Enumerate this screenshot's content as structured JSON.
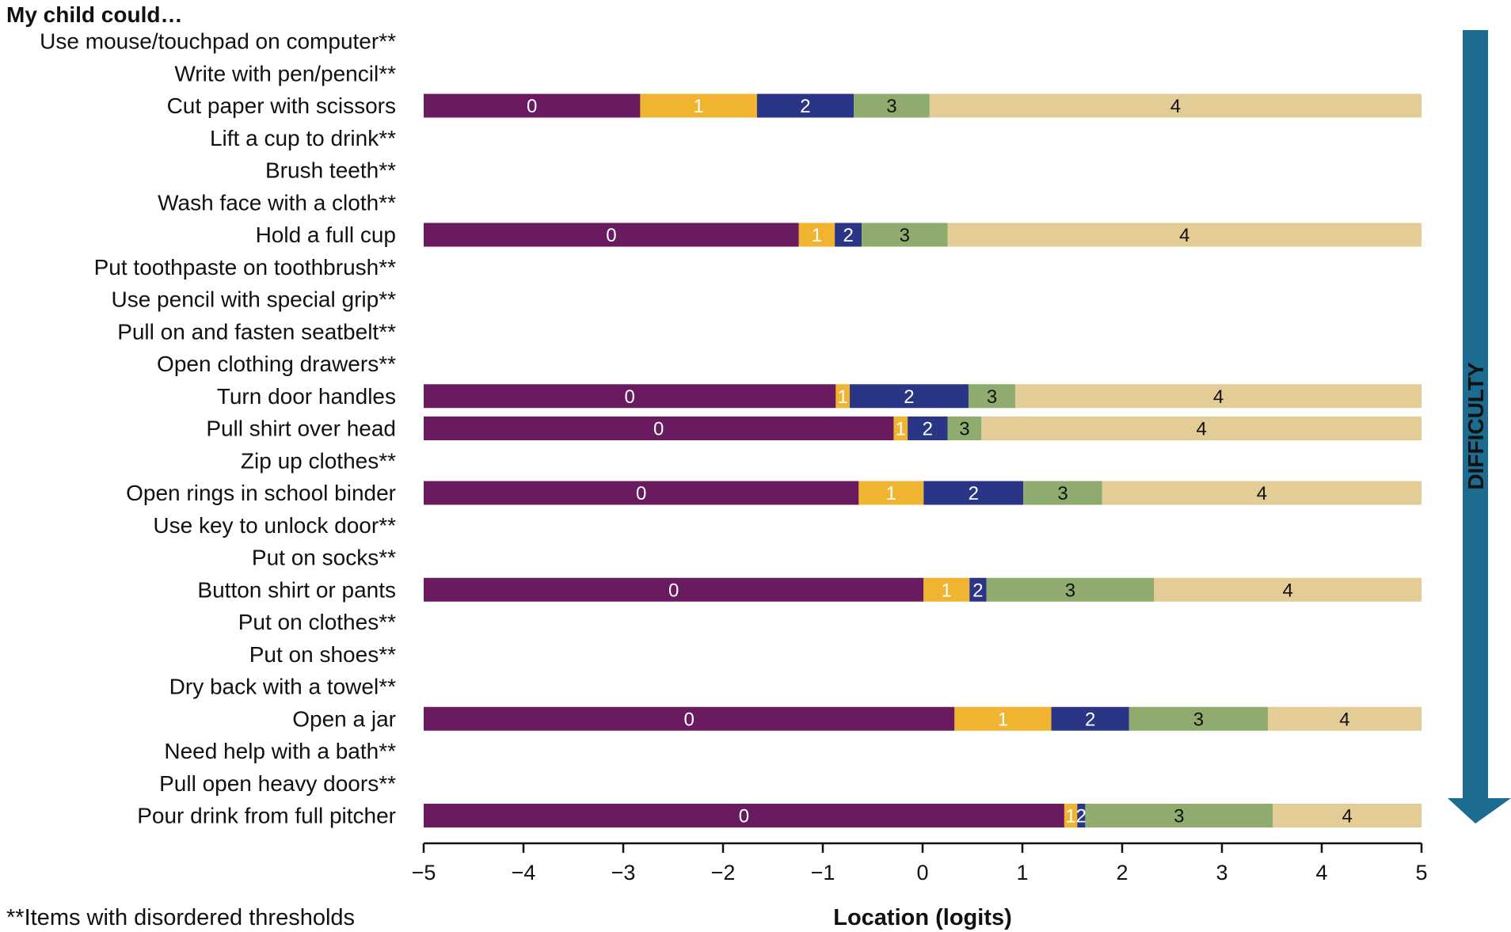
{
  "chart_data": {
    "type": "bar",
    "subtype": "stacked-horizontal-threshold",
    "title": "My child could…",
    "xlabel": "Location (logits)",
    "xlim": [
      -5,
      5
    ],
    "xticks": [
      "−5",
      "−4",
      "−3",
      "−2",
      "−1",
      "0",
      "1",
      "2",
      "3",
      "4",
      "5"
    ],
    "xtick_values": [
      -5,
      -4,
      -3,
      -2,
      -1,
      0,
      1,
      2,
      3,
      4,
      5
    ],
    "footnote": "**Items with disordered thresholds",
    "difficulty_label": "DIFFICULTY",
    "category_labels": [
      "0",
      "1",
      "2",
      "3",
      "4"
    ],
    "colors": [
      "#6a1b5f",
      "#f0b430",
      "#2b3585",
      "#8fab6e",
      "#e3cc96"
    ],
    "label_colors": [
      "#ffffff",
      "#ffffff",
      "#ffffff",
      "#111111",
      "#111111"
    ],
    "arrow_color": "#1c6b91",
    "items": [
      {
        "label": "Use mouse/touchpad on computer**",
        "thresholds": null
      },
      {
        "label": "Write with pen/pencil**",
        "thresholds": null
      },
      {
        "label": "Cut paper with scissors",
        "thresholds": [
          -2.83,
          -1.66,
          -0.69,
          0.07
        ]
      },
      {
        "label": "Lift a cup to drink**",
        "thresholds": null
      },
      {
        "label": "Brush teeth**",
        "thresholds": null
      },
      {
        "label": "Wash face with a cloth**",
        "thresholds": null
      },
      {
        "label": "Hold a full cup",
        "thresholds": [
          -1.24,
          -0.88,
          -0.61,
          0.25
        ]
      },
      {
        "label": "Put toothpaste on toothbrush**",
        "thresholds": null
      },
      {
        "label": "Use pencil with special grip**",
        "thresholds": null
      },
      {
        "label": "Pull on and fasten seatbelt**",
        "thresholds": null
      },
      {
        "label": "Open clothing drawers**",
        "thresholds": null
      },
      {
        "label": "Turn door handles",
        "thresholds": [
          -0.87,
          -0.73,
          0.46,
          0.93
        ]
      },
      {
        "label": "Pull shirt over head",
        "thresholds": [
          -0.29,
          -0.15,
          0.25,
          0.59
        ]
      },
      {
        "label": "Zip up clothes**",
        "thresholds": null
      },
      {
        "label": "Open rings in school binder",
        "thresholds": [
          -0.64,
          0.01,
          1.01,
          1.8
        ]
      },
      {
        "label": "Use key to unlock door**",
        "thresholds": null
      },
      {
        "label": "Put on socks**",
        "thresholds": null
      },
      {
        "label": "Button shirt or pants",
        "thresholds": [
          0.01,
          0.47,
          0.64,
          2.32
        ]
      },
      {
        "label": "Put on clothes**",
        "thresholds": null
      },
      {
        "label": "Put on shoes**",
        "thresholds": null
      },
      {
        "label": "Dry back with a towel**",
        "thresholds": null
      },
      {
        "label": "Open a jar",
        "thresholds": [
          0.32,
          1.29,
          2.07,
          3.46
        ]
      },
      {
        "label": "Need help with a bath**",
        "thresholds": null
      },
      {
        "label": "Pull open heavy doors**",
        "thresholds": null
      },
      {
        "label": "Pour drink from full pitcher",
        "thresholds": [
          1.42,
          1.55,
          1.63,
          3.51
        ]
      }
    ]
  }
}
